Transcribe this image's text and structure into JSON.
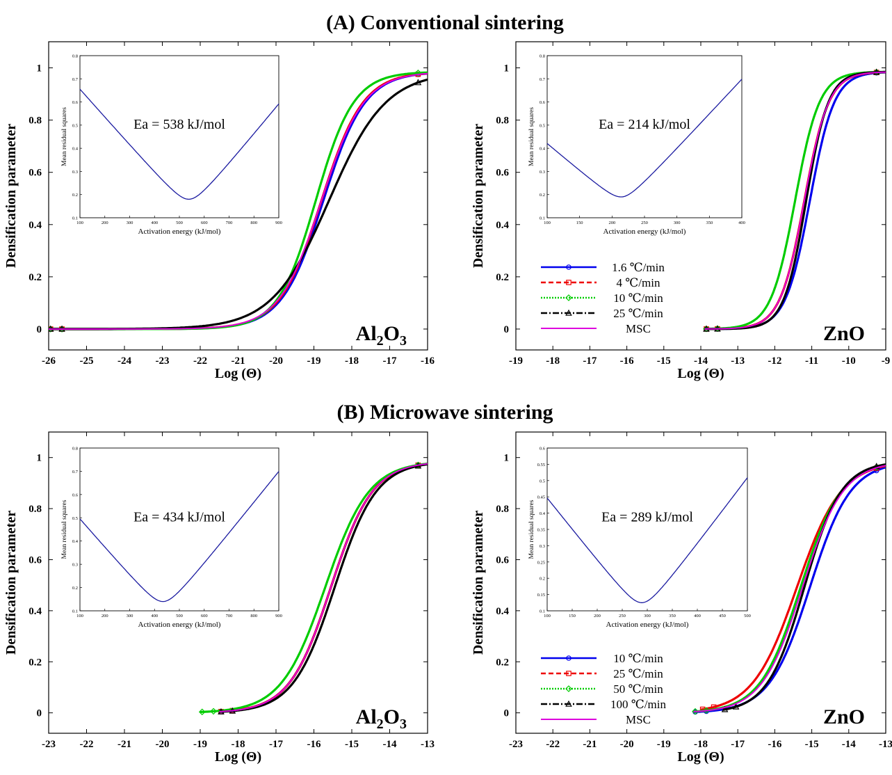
{
  "section_titles": {
    "a": "(A) Conventional sintering",
    "b": "(B) Microwave sintering"
  },
  "chart_data": [
    {
      "type": "line",
      "section": "(A) Conventional sintering",
      "material": "Al2O3",
      "xlabel": "Log (Θ)",
      "ylabel": "Densification parameter",
      "xlim": [
        -26,
        -16
      ],
      "ylim": [
        -0.08,
        1.1
      ],
      "xticks": [
        -26,
        -25,
        -24,
        -23,
        -22,
        -21,
        -20,
        -19,
        -18,
        -17,
        -16
      ],
      "yticks": [
        0,
        0.2,
        0.4,
        0.6,
        0.8,
        1
      ],
      "series": [
        {
          "color": "#0000ee",
          "marker": "circle",
          "center": -18.75,
          "width": 0.55,
          "xstart": -26
        },
        {
          "color": "#ee0000",
          "marker": "square",
          "center": -18.8,
          "width": 0.55,
          "xstart": -26
        },
        {
          "color": "#00cc00",
          "marker": "diamond",
          "center": -18.95,
          "width": 0.5,
          "xstart": -26
        },
        {
          "color": "#000000",
          "marker": "triangle",
          "center": -18.6,
          "width": 0.75,
          "xstart": -26
        },
        {
          "color": "#dd00dd",
          "marker": "none",
          "center": -18.8,
          "width": 0.56,
          "xstart": -26
        }
      ],
      "inset": {
        "xlabel": "Activation energy (kJ/mol)",
        "ylabel": "Mean residual squares",
        "xlim": [
          100,
          900
        ],
        "ylim": [
          0.1,
          0.8
        ],
        "xticks": [
          100,
          200,
          300,
          400,
          500,
          600,
          700,
          800,
          900
        ],
        "yticks": [
          0.1,
          0.2,
          0.3,
          0.4,
          0.5,
          0.6,
          0.7,
          0.8
        ],
        "min_x": 538,
        "min_y": 0.18,
        "left_y": 0.71,
        "right_y": 0.65,
        "annotation": "Ea = 538 kJ/mol"
      }
    },
    {
      "type": "line",
      "section": "(A) Conventional sintering",
      "material": "ZnO",
      "xlabel": "Log (Θ)",
      "ylabel": "Densification parameter",
      "xlim": [
        -19,
        -9
      ],
      "ylim": [
        -0.08,
        1.1
      ],
      "xticks": [
        -19,
        -18,
        -17,
        -16,
        -15,
        -14,
        -13,
        -12,
        -11,
        -10,
        -9
      ],
      "yticks": [
        0,
        0.2,
        0.4,
        0.6,
        0.8,
        1
      ],
      "legend": [
        "1.6 ℃/min",
        "4 ℃/min",
        "10 ℃/min",
        "25 ℃/min",
        "MSC"
      ],
      "legend_position": "bottom-left",
      "series": [
        {
          "name": "1.6 ℃/min",
          "color": "#0000ee",
          "marker": "circle",
          "center": -11.05,
          "width": 0.33,
          "xstart": -13.9
        },
        {
          "name": "4 ℃/min",
          "color": "#ee0000",
          "marker": "square",
          "center": -11.2,
          "width": 0.33,
          "xstart": -13.9
        },
        {
          "name": "10 ℃/min",
          "color": "#00cc00",
          "marker": "diamond",
          "center": -11.45,
          "width": 0.33,
          "xstart": -13.9
        },
        {
          "name": "25 ℃/min",
          "color": "#000000",
          "marker": "triangle",
          "center": -11.15,
          "width": 0.3,
          "xstart": -13.9
        },
        {
          "name": "MSC",
          "color": "#dd00dd",
          "marker": "none",
          "center": -11.2,
          "width": 0.33,
          "xstart": -13.9
        }
      ],
      "inset": {
        "xlabel": "Activation energy (kJ/mol)",
        "ylabel": "Mean residual squares",
        "xlim": [
          100,
          400
        ],
        "ylim": [
          0.1,
          0.8
        ],
        "xticks": [
          100,
          150,
          200,
          250,
          300,
          350,
          400
        ],
        "yticks": [
          0.1,
          0.2,
          0.3,
          0.4,
          0.5,
          0.6,
          0.7,
          0.8
        ],
        "min_x": 214,
        "min_y": 0.19,
        "left_y": 0.46,
        "right_y": 0.75,
        "annotation": "Ea = 214 kJ/mol"
      }
    },
    {
      "type": "line",
      "section": "(B) Microwave sintering",
      "material": "Al2O3",
      "xlabel": "Log (Θ)",
      "ylabel": "Densification parameter",
      "xlim": [
        -23,
        -13
      ],
      "ylim": [
        -0.08,
        1.1
      ],
      "xticks": [
        -23,
        -22,
        -21,
        -20,
        -19,
        -18,
        -17,
        -16,
        -15,
        -14,
        -13
      ],
      "yticks": [
        0,
        0.2,
        0.4,
        0.6,
        0.8,
        1
      ],
      "series": [
        {
          "color": "#0000ee",
          "marker": "circle",
          "center": -15.55,
          "width": 0.55,
          "xstart": -18.5
        },
        {
          "color": "#ee0000",
          "marker": "square",
          "center": -15.55,
          "width": 0.55,
          "xstart": -18.5
        },
        {
          "color": "#00cc00",
          "marker": "diamond",
          "center": -15.7,
          "width": 0.58,
          "xstart": -19.0
        },
        {
          "color": "#000000",
          "marker": "triangle",
          "center": -15.45,
          "width": 0.55,
          "xstart": -18.5
        },
        {
          "color": "#dd00dd",
          "marker": "none",
          "center": -15.55,
          "width": 0.55,
          "xstart": -18.5
        }
      ],
      "inset": {
        "xlabel": "Activation energy (kJ/mol)",
        "ylabel": "Mean residual squares",
        "xlim": [
          100,
          900
        ],
        "ylim": [
          0.1,
          0.8
        ],
        "xticks": [
          100,
          200,
          300,
          400,
          500,
          600,
          700,
          800,
          900
        ],
        "yticks": [
          0.1,
          0.2,
          0.3,
          0.4,
          0.5,
          0.6,
          0.7,
          0.8
        ],
        "min_x": 434,
        "min_y": 0.14,
        "left_y": 0.55,
        "right_y": 0.76,
        "annotation": "Ea = 434 kJ/mol"
      }
    },
    {
      "type": "line",
      "section": "(B) Microwave sintering",
      "material": "ZnO",
      "xlabel": "Log (Θ)",
      "ylabel": "Densification parameter",
      "xlim": [
        -23,
        -13
      ],
      "ylim": [
        -0.08,
        1.1
      ],
      "xticks": [
        -23,
        -22,
        -21,
        -20,
        -19,
        -18,
        -17,
        -16,
        -15,
        -14,
        -13
      ],
      "yticks": [
        0,
        0.2,
        0.4,
        0.6,
        0.8,
        1
      ],
      "legend": [
        "10 ℃/min",
        "25 ℃/min",
        "50 ℃/min",
        "100 ℃/min",
        "MSC"
      ],
      "legend_position": "bottom-left",
      "series": [
        {
          "name": "10 ℃/min",
          "color": "#0000ee",
          "marker": "circle",
          "center": -15.05,
          "width": 0.55,
          "xstart": -18.2
        },
        {
          "name": "25 ℃/min",
          "color": "#ee0000",
          "marker": "square",
          "center": -15.4,
          "width": 0.6,
          "xstart": -18.0
        },
        {
          "name": "50 ℃/min",
          "color": "#00cc00",
          "marker": "diamond",
          "center": -15.3,
          "width": 0.55,
          "xstart": -18.2
        },
        {
          "name": "100 ℃/min",
          "color": "#000000",
          "marker": "triangle",
          "center": -15.2,
          "width": 0.5,
          "xstart": -17.4
        },
        {
          "name": "MSC",
          "color": "#dd00dd",
          "marker": "none",
          "center": -15.25,
          "width": 0.55,
          "xstart": -18.2
        }
      ],
      "inset": {
        "xlabel": "Activation energy (kJ/mol)",
        "ylabel": "Mean residual squares",
        "xlim": [
          100,
          500
        ],
        "ylim": [
          0.1,
          0.6
        ],
        "xticks": [
          100,
          150,
          200,
          250,
          300,
          350,
          400,
          450,
          500
        ],
        "yticks": [
          0.1,
          0.15,
          0.2,
          0.25,
          0.3,
          0.35,
          0.4,
          0.45,
          0.5,
          0.55,
          0.6
        ],
        "min_x": 289,
        "min_y": 0.125,
        "left_y": 0.49,
        "right_y": 0.555,
        "annotation": "Ea = 289 kJ/mol"
      }
    }
  ]
}
